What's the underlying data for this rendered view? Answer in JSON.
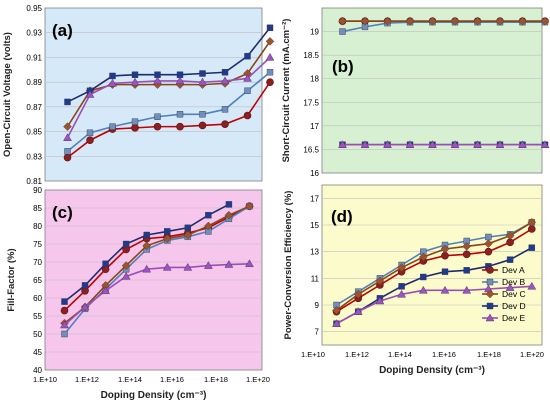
{
  "chart_data": [
    {
      "id": "a",
      "type": "line",
      "panel_label": "(a)",
      "ylabel": "Open-Circuit Voltage (volts)",
      "xlabel": "",
      "x_scale": "log",
      "x_ticks": [],
      "y_ticks": [
        "0.81",
        "0.83",
        "0.85",
        "0.87",
        "0.89",
        "0.91",
        "0.93",
        "0.95"
      ],
      "ylim": [
        0.81,
        0.95
      ],
      "grid": true,
      "background": "#d6e9f8",
      "x": [
        "1.00E+11",
        "1.00E+12",
        "1.00E+13",
        "1.00E+14",
        "1.00E+15",
        "1.00E+16",
        "1.00E+17",
        "1.00E+18",
        "1.00E+19",
        "1.00E+20"
      ],
      "series": [
        {
          "key": "A",
          "values": [
            0.829,
            0.843,
            0.852,
            0.853,
            0.854,
            0.854,
            0.855,
            0.856,
            0.863,
            0.89
          ]
        },
        {
          "key": "B",
          "values": [
            0.834,
            0.849,
            0.854,
            0.858,
            0.862,
            0.864,
            0.864,
            0.868,
            0.883,
            0.898
          ]
        },
        {
          "key": "C",
          "values": [
            0.854,
            0.883,
            0.888,
            0.888,
            0.888,
            0.888,
            0.888,
            0.889,
            0.897,
            0.923
          ]
        },
        {
          "key": "D",
          "values": [
            0.874,
            0.883,
            0.895,
            0.896,
            0.896,
            0.896,
            0.897,
            0.898,
            0.911,
            0.934
          ]
        },
        {
          "key": "E",
          "values": [
            0.845,
            0.88,
            0.889,
            0.89,
            0.891,
            0.891,
            0.89,
            0.891,
            0.893,
            0.91
          ]
        }
      ]
    },
    {
      "id": "b",
      "type": "line",
      "panel_label": "(b)",
      "ylabel": "Short-Circuit Current (mA.cm⁻²)",
      "xlabel": "",
      "x_scale": "log",
      "x_ticks": [],
      "y_ticks": [
        "16",
        "16.5",
        "17",
        "17.5",
        "18",
        "18.5",
        "19"
      ],
      "ylim": [
        16,
        19.5
      ],
      "grid": true,
      "background": "#d7f0d2",
      "x": [
        "1.00E+11",
        "1.00E+12",
        "1.00E+13",
        "1.00E+14",
        "1.00E+15",
        "1.00E+16",
        "1.00E+17",
        "1.00E+18",
        "1.00E+19",
        "1.00E+20"
      ],
      "series": [
        {
          "key": "A",
          "values": [
            19.22,
            19.22,
            19.22,
            19.22,
            19.22,
            19.22,
            19.22,
            19.22,
            19.22,
            19.22
          ]
        },
        {
          "key": "B",
          "values": [
            19.0,
            19.1,
            19.18,
            19.2,
            19.2,
            19.2,
            19.2,
            19.2,
            19.2,
            19.2
          ]
        },
        {
          "key": "C",
          "values": [
            19.22,
            19.22,
            19.22,
            19.22,
            19.22,
            19.22,
            19.22,
            19.22,
            19.22,
            19.22
          ]
        },
        {
          "key": "D",
          "values": [
            16.6,
            16.6,
            16.6,
            16.6,
            16.6,
            16.6,
            16.6,
            16.6,
            16.6,
            16.6
          ]
        },
        {
          "key": "E",
          "values": [
            16.6,
            16.6,
            16.6,
            16.6,
            16.6,
            16.6,
            16.6,
            16.6,
            16.6,
            16.6
          ]
        }
      ]
    },
    {
      "id": "c",
      "type": "line",
      "panel_label": "(c)",
      "ylabel": "Fill-Factor (%)",
      "xlabel": "Doping Density (cm⁻³)",
      "x_scale": "log",
      "x_ticks": [
        "1.E+10",
        "1.E+12",
        "1.E+14",
        "1.E+16",
        "1.E+18",
        "1.E+20"
      ],
      "y_ticks": [
        "40",
        "45",
        "50",
        "55",
        "60",
        "65",
        "70",
        "75",
        "80",
        "85",
        "90"
      ],
      "ylim": [
        40,
        90
      ],
      "grid": true,
      "background": "#f6c6ec",
      "x": [
        "1.00E+11",
        "1.00E+12",
        "1.00E+13",
        "1.00E+14",
        "1.00E+15",
        "1.00E+16",
        "1.00E+17",
        "1.00E+18",
        "1.00E+19",
        "1.00E+20"
      ],
      "series": [
        {
          "key": "A",
          "values": [
            56.5,
            62.0,
            68.0,
            73.5,
            76.5,
            77.0,
            78.0,
            79.5,
            82.5,
            85.5
          ]
        },
        {
          "key": "B",
          "values": [
            50.0,
            57.0,
            62.5,
            68.0,
            73.5,
            76.0,
            77.0,
            78.5,
            82.0,
            85.5
          ]
        },
        {
          "key": "C",
          "values": [
            53.0,
            57.5,
            63.5,
            69.0,
            74.5,
            76.5,
            77.5,
            80.0,
            83.0,
            85.5
          ]
        },
        {
          "key": "D",
          "values": [
            59.0,
            63.5,
            69.5,
            75.0,
            77.5,
            78.5,
            79.5,
            83.0,
            86.0,
            null
          ]
        },
        {
          "key": "E",
          "values": [
            52.5,
            57.5,
            62.0,
            66.0,
            68.0,
            68.5,
            68.5,
            69.0,
            69.3,
            69.5
          ]
        }
      ]
    },
    {
      "id": "d",
      "type": "line",
      "panel_label": "(d)",
      "ylabel": "Power-Conversion Efficiency (%)",
      "xlabel": "Doping Density (cm⁻³)",
      "x_scale": "log",
      "x_ticks": [
        "1.E+10",
        "1.E+12",
        "1.E+14",
        "1.E+16",
        "1.E+18",
        "1.E+20"
      ],
      "y_ticks": [
        "7",
        "9",
        "11",
        "13",
        "15",
        "17"
      ],
      "ylim": [
        6,
        18
      ],
      "grid": true,
      "background": "#fbfbcb",
      "x": [
        "1.00E+11",
        "1.00E+12",
        "1.00E+13",
        "1.00E+14",
        "1.00E+15",
        "1.00E+16",
        "1.00E+17",
        "1.00E+18",
        "1.00E+19",
        "1.00E+20"
      ],
      "series": [
        {
          "key": "A",
          "values": [
            8.5,
            9.5,
            10.5,
            11.5,
            12.3,
            12.7,
            12.8,
            13.0,
            13.7,
            14.7
          ]
        },
        {
          "key": "B",
          "values": [
            9.0,
            10.0,
            11.0,
            12.0,
            13.0,
            13.5,
            13.8,
            14.1,
            14.3,
            15.2
          ]
        },
        {
          "key": "C",
          "values": [
            8.6,
            9.8,
            10.8,
            11.8,
            12.6,
            13.2,
            13.4,
            13.6,
            14.2,
            15.2
          ]
        },
        {
          "key": "D",
          "values": [
            7.6,
            8.5,
            9.5,
            10.4,
            11.1,
            11.5,
            11.6,
            11.9,
            12.4,
            13.3
          ]
        },
        {
          "key": "E",
          "values": [
            7.6,
            8.5,
            9.3,
            9.8,
            10.1,
            10.1,
            10.1,
            10.2,
            10.3,
            10.4
          ]
        }
      ],
      "legend": {
        "placement": "lower-right",
        "entries": [
          {
            "key": "A",
            "label": "Dev A"
          },
          {
            "key": "B",
            "label": "Dev B"
          },
          {
            "key": "C",
            "label": "Dev C"
          },
          {
            "key": "D",
            "label": "Dev D"
          },
          {
            "key": "E",
            "label": "Dev E"
          }
        ]
      }
    }
  ],
  "series_styles": {
    "A": {
      "color": "#c00000",
      "marker": "circle",
      "marker_color": "#8c1f1f"
    },
    "B": {
      "color": "#4f81bd",
      "marker": "square",
      "marker_color": "#6f8fc0"
    },
    "C": {
      "color": "#8b4513",
      "marker": "diamond",
      "marker_color": "#a0522d"
    },
    "D": {
      "color": "#1f2b6e",
      "marker": "square",
      "marker_color": "#1f3a93"
    },
    "E": {
      "color": "#9b4fb5",
      "marker": "triangle",
      "marker_color": "#a050c8"
    }
  }
}
